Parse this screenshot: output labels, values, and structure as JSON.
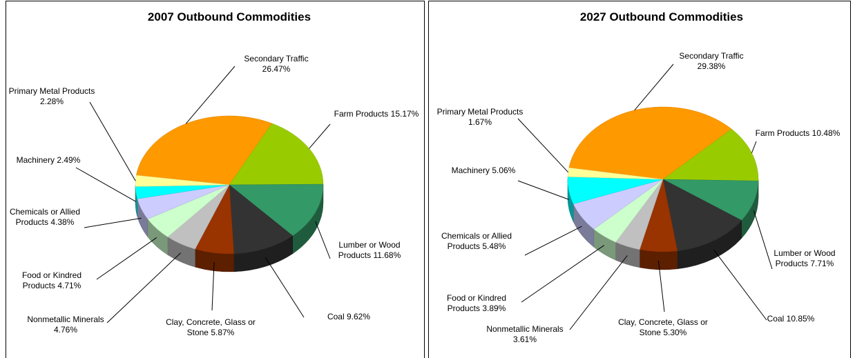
{
  "chart_data": [
    {
      "type": "pie3d",
      "title": "2007 Outbound Commodities",
      "categories": [
        "Secondary Traffic",
        "Farm Products",
        "Lumber or Wood Products",
        "Coal",
        "Clay, Concrete, Glass or Stone",
        "Nonmetallic Minerals",
        "Food or Kindred Products",
        "Chemicals or Allied Products",
        "Machinery",
        "Primary Metal Products"
      ],
      "values": [
        26.47,
        15.17,
        11.68,
        9.62,
        5.87,
        4.76,
        4.71,
        4.38,
        2.49,
        2.28
      ],
      "value_labels": [
        "26.47%",
        "15.17%",
        "11.68%",
        "9.62%",
        "5.87%",
        "4.76%",
        "4.71%",
        "4.38%",
        "2.49%",
        "2.28%"
      ],
      "colors": [
        "#ff9900",
        "#99cc00",
        "#339966",
        "#333333",
        "#993300",
        "#c0c0c0",
        "#ccffcc",
        "#ccccff",
        "#00ffff",
        "#ffff99"
      ]
    },
    {
      "type": "pie3d",
      "title": "2027 Outbound Commodities",
      "categories": [
        "Secondary Traffic",
        "Farm Products",
        "Lumber or Wood Products",
        "Coal",
        "Clay, Concrete, Glass or Stone",
        "Nonmetallic Minerals",
        "Food or Kindred Products",
        "Chemicals or Allied Products",
        "Machinery",
        "Primary Metal Products"
      ],
      "values": [
        29.38,
        10.48,
        7.71,
        10.85,
        5.3,
        3.61,
        3.89,
        5.48,
        5.06,
        1.67
      ],
      "value_labels": [
        "29.38%",
        "10.48%",
        "7.71%",
        "10.85%",
        "5.30%",
        "3.61%",
        "3.89%",
        "5.48%",
        "5.06%",
        "1.67%"
      ],
      "colors": [
        "#ff9900",
        "#99cc00",
        "#339966",
        "#333333",
        "#993300",
        "#c0c0c0",
        "#ccffcc",
        "#ccccff",
        "#00ffff",
        "#ffff99"
      ]
    }
  ]
}
